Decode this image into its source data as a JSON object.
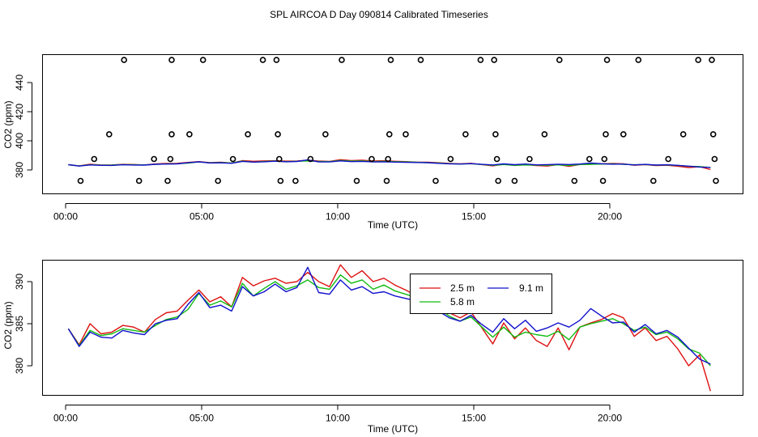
{
  "title": "SPL AIRCOA D  Day 090814  Calibrated Timeseries",
  "colors": {
    "s25": "#dd1111",
    "s58": "#11bb11",
    "s91": "#1111cc"
  },
  "chart_data": [
    {
      "type": "line+scatter",
      "name": "top",
      "xlabel": "Time (UTC)",
      "ylabel": "CO2 (ppm)",
      "xlim": [
        0,
        24
      ],
      "ylim": [
        367,
        458
      ],
      "xticks": [
        0,
        5,
        10,
        15,
        20
      ],
      "xtick_labels": [
        "00:00",
        "05:00",
        "10:00",
        "15:00",
        "20:00"
      ],
      "yticks": [
        380,
        400,
        420,
        440
      ],
      "ytick_labels": [
        "380",
        "400",
        "420",
        "440"
      ],
      "points": [
        [
          0.55,
          372.5
        ],
        [
          1.05,
          387.5
        ],
        [
          1.6,
          404.5
        ],
        [
          2.15,
          455.5
        ],
        [
          2.7,
          372.5
        ],
        [
          3.25,
          387.5
        ],
        [
          3.75,
          372.5
        ],
        [
          3.85,
          387.5
        ],
        [
          3.9,
          404.5
        ],
        [
          3.9,
          455.5
        ],
        [
          4.55,
          404.5
        ],
        [
          5.05,
          455.5
        ],
        [
          5.6,
          372.5
        ],
        [
          6.15,
          387.5
        ],
        [
          6.7,
          404.5
        ],
        [
          7.25,
          455.5
        ],
        [
          7.75,
          455.5
        ],
        [
          7.8,
          404.5
        ],
        [
          7.85,
          387.5
        ],
        [
          7.9,
          372.5
        ],
        [
          8.45,
          372.5
        ],
        [
          9.0,
          387.5
        ],
        [
          9.55,
          404.5
        ],
        [
          10.15,
          455.5
        ],
        [
          10.7,
          372.5
        ],
        [
          11.25,
          387.5
        ],
        [
          11.8,
          372.5
        ],
        [
          11.85,
          387.5
        ],
        [
          11.9,
          404.5
        ],
        [
          11.95,
          455.5
        ],
        [
          12.5,
          404.5
        ],
        [
          13.05,
          455.5
        ],
        [
          13.6,
          372.5
        ],
        [
          14.15,
          387.5
        ],
        [
          14.7,
          404.5
        ],
        [
          15.25,
          455.5
        ],
        [
          15.75,
          455.5
        ],
        [
          15.8,
          404.5
        ],
        [
          15.85,
          387.5
        ],
        [
          15.9,
          372.5
        ],
        [
          16.5,
          372.5
        ],
        [
          17.05,
          387.5
        ],
        [
          17.6,
          404.5
        ],
        [
          18.15,
          455.5
        ],
        [
          18.7,
          372.5
        ],
        [
          19.25,
          387.5
        ],
        [
          19.75,
          372.5
        ],
        [
          19.8,
          387.5
        ],
        [
          19.85,
          404.5
        ],
        [
          19.9,
          455.5
        ],
        [
          20.5,
          404.5
        ],
        [
          21.05,
          455.5
        ],
        [
          21.6,
          372.5
        ],
        [
          22.15,
          387.5
        ],
        [
          22.7,
          404.5
        ],
        [
          23.25,
          455.5
        ],
        [
          23.75,
          455.5
        ],
        [
          23.8,
          404.5
        ],
        [
          23.85,
          387.5
        ],
        [
          23.9,
          372.5
        ]
      ]
    },
    {
      "type": "line",
      "name": "bottom",
      "xlabel": "Time (UTC)",
      "ylabel": "CO2 (ppm)",
      "xlim": [
        0,
        24
      ],
      "ylim": [
        376.6,
        393.0
      ],
      "xticks": [
        0,
        5,
        10,
        15,
        20
      ],
      "xtick_labels": [
        "00:00",
        "05:00",
        "10:00",
        "15:00",
        "20:00"
      ],
      "yticks": [
        380,
        385,
        390
      ],
      "ytick_labels": [
        "380",
        "385",
        "390"
      ],
      "legend": [
        "2.5 m",
        "5.8 m",
        "9.1 m"
      ],
      "legend_position": "top-right"
    }
  ],
  "series_data": {
    "s25": {
      "name": "2.5 m",
      "x": [
        0.1,
        0.5,
        0.9,
        1.3,
        1.7,
        2.1,
        2.5,
        2.9,
        3.3,
        3.7,
        4.1,
        4.5,
        4.9,
        5.3,
        5.7,
        6.1,
        6.5,
        6.9,
        7.3,
        7.7,
        8.1,
        8.5,
        8.9,
        9.3,
        9.7,
        10.1,
        10.5,
        10.9,
        11.3,
        11.7,
        12.1,
        12.5,
        12.9,
        13.3,
        13.7,
        14.1,
        14.5,
        14.9,
        15.3,
        15.7,
        16.1,
        16.5,
        16.9,
        17.3,
        17.7,
        18.1,
        18.5,
        18.9,
        19.3,
        19.7,
        20.1,
        20.5,
        20.9,
        21.3,
        21.7,
        22.1,
        22.5,
        22.9,
        23.3,
        23.7
      ],
      "y": [
        384.4,
        382.5,
        385.0,
        383.8,
        384.0,
        384.8,
        384.6,
        384.0,
        385.5,
        386.3,
        386.5,
        387.8,
        389.0,
        387.6,
        388.2,
        387.0,
        390.5,
        389.5,
        390.1,
        390.4,
        389.8,
        390.0,
        391.1,
        390.0,
        389.4,
        392.0,
        390.5,
        391.3,
        390.0,
        390.4,
        389.6,
        389.0,
        388.3,
        388.1,
        387.3,
        386.3,
        385.7,
        386.4,
        384.5,
        382.6,
        385.1,
        383.2,
        384.5,
        383.0,
        382.3,
        384.5,
        381.9,
        384.6,
        385.1,
        385.5,
        386.2,
        385.7,
        383.5,
        384.5,
        383.0,
        383.5,
        382.0,
        380.0,
        381.3,
        377.0
      ]
    },
    "s58": {
      "name": "5.8 m",
      "x": [
        0.1,
        0.5,
        0.9,
        1.3,
        1.7,
        2.1,
        2.5,
        2.9,
        3.3,
        3.7,
        4.1,
        4.5,
        4.9,
        5.3,
        5.7,
        6.1,
        6.5,
        6.9,
        7.3,
        7.7,
        8.1,
        8.5,
        8.9,
        9.3,
        9.7,
        10.1,
        10.5,
        10.9,
        11.3,
        11.7,
        12.1,
        12.5,
        12.9,
        13.3,
        13.7,
        14.1,
        14.5,
        14.9,
        15.3,
        15.7,
        16.1,
        16.5,
        16.9,
        17.3,
        17.7,
        18.1,
        18.5,
        18.9,
        19.3,
        19.7,
        20.1,
        20.5,
        20.9,
        21.3,
        21.7,
        22.1,
        22.5,
        22.9,
        23.3,
        23.7
      ],
      "y": [
        384.4,
        382.4,
        384.2,
        383.6,
        383.8,
        384.4,
        384.2,
        384.0,
        384.8,
        385.5,
        385.8,
        386.7,
        388.6,
        387.2,
        387.7,
        387.0,
        389.8,
        388.3,
        389.2,
        390.0,
        389.1,
        389.5,
        390.2,
        389.3,
        389.1,
        390.8,
        389.8,
        390.2,
        389.1,
        389.6,
        388.9,
        388.5,
        388.1,
        387.5,
        386.8,
        385.9,
        385.3,
        385.8,
        384.6,
        383.4,
        384.6,
        383.4,
        384.0,
        383.7,
        383.5,
        384.1,
        383.1,
        384.6,
        385.0,
        385.3,
        385.6,
        385.0,
        384.2,
        384.6,
        383.7,
        384.0,
        383.2,
        382.0,
        381.5,
        380.0
      ]
    },
    "s91": {
      "name": "9.1 m",
      "x": [
        0.1,
        0.5,
        0.9,
        1.3,
        1.7,
        2.1,
        2.5,
        2.9,
        3.3,
        3.7,
        4.1,
        4.5,
        4.9,
        5.3,
        5.7,
        6.1,
        6.5,
        6.9,
        7.3,
        7.7,
        8.1,
        8.5,
        8.9,
        9.3,
        9.7,
        10.1,
        10.5,
        10.9,
        11.3,
        11.7,
        12.1,
        12.5,
        12.9,
        13.3,
        13.7,
        14.1,
        14.5,
        14.9,
        15.3,
        15.7,
        16.1,
        16.5,
        16.9,
        17.3,
        17.7,
        18.1,
        18.5,
        18.9,
        19.3,
        19.7,
        20.1,
        20.5,
        20.9,
        21.3,
        21.7,
        22.1,
        22.5,
        22.9,
        23.3,
        23.7
      ],
      "y": [
        384.4,
        382.3,
        384.0,
        383.4,
        383.3,
        384.2,
        383.9,
        383.7,
        385.0,
        385.4,
        385.6,
        387.3,
        388.7,
        386.9,
        387.2,
        386.5,
        389.4,
        388.3,
        388.8,
        389.7,
        388.8,
        389.3,
        391.7,
        388.7,
        388.5,
        390.2,
        389.0,
        389.4,
        388.6,
        388.8,
        388.3,
        388.0,
        387.7,
        387.4,
        386.5,
        385.7,
        385.3,
        386.0,
        384.9,
        384.0,
        385.6,
        384.4,
        385.4,
        384.1,
        384.5,
        385.1,
        384.6,
        385.4,
        386.8,
        385.9,
        385.1,
        385.2,
        384.0,
        384.9,
        383.8,
        384.2,
        383.4,
        382.1,
        380.8,
        380.2
      ]
    }
  }
}
